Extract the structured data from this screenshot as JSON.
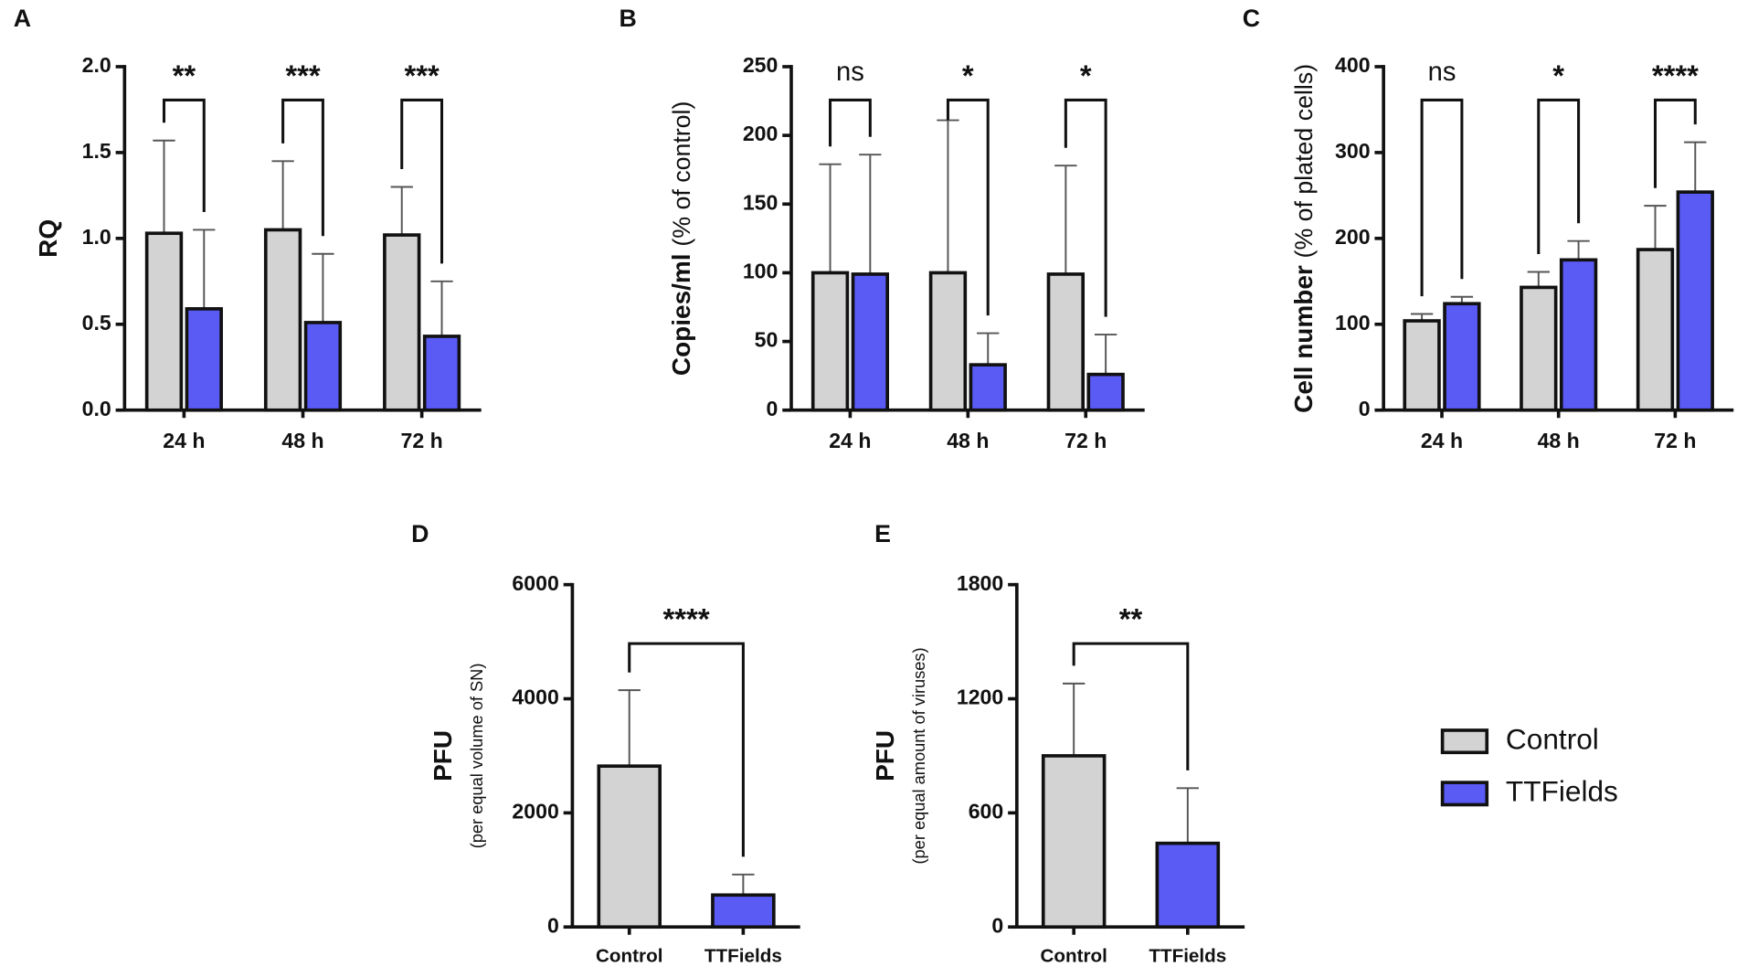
{
  "chart_data": [
    {
      "type": "grouped-bar",
      "panel": "A",
      "ylabel": "RQ",
      "categories": [
        "24 h",
        "48 h",
        "72 h"
      ],
      "series": [
        {
          "name": "Control",
          "color": "#d3d3d3",
          "values": [
            1.03,
            1.05,
            1.02
          ],
          "errors": [
            0.54,
            0.4,
            0.28
          ]
        },
        {
          "name": "TTFields",
          "color": "#5a5af5",
          "values": [
            0.59,
            0.51,
            0.43
          ],
          "errors": [
            0.46,
            0.4,
            0.32
          ]
        }
      ],
      "significance": [
        "**",
        "***",
        "***"
      ],
      "ylim": [
        0,
        2
      ],
      "yticks": [
        {
          "value": 0,
          "label": "0.0"
        },
        0.5,
        {
          "value": 1,
          "label": "1.0"
        },
        1.5,
        {
          "value": 2,
          "label": "2.0"
        }
      ]
    },
    {
      "type": "grouped-bar",
      "panel": "B",
      "ylabel": "Copies/ml",
      "ylabel_note": "(% of control)",
      "categories": [
        "24 h",
        "48 h",
        "72 h"
      ],
      "series": [
        {
          "name": "Control",
          "color": "#d3d3d3",
          "values": [
            100,
            100,
            99
          ],
          "errors": [
            79,
            111,
            79
          ]
        },
        {
          "name": "TTFields",
          "color": "#5a5af5",
          "values": [
            99,
            33,
            26
          ],
          "errors": [
            87,
            23,
            29
          ]
        }
      ],
      "significance": [
        "ns",
        "*",
        "*"
      ],
      "ylim": [
        0,
        250
      ],
      "yticks": [
        0,
        50,
        100,
        150,
        200,
        250
      ]
    },
    {
      "type": "grouped-bar",
      "panel": "C",
      "ylabel": "Cell number",
      "ylabel_note": "(% of plated cells)",
      "categories": [
        "24 h",
        "48 h",
        "72 h"
      ],
      "series": [
        {
          "name": "Control",
          "color": "#d3d3d3",
          "values": [
            104,
            143,
            187
          ],
          "errors": [
            8,
            18,
            51
          ]
        },
        {
          "name": "TTFields",
          "color": "#5a5af5",
          "values": [
            124,
            175,
            254
          ],
          "errors": [
            8,
            22,
            58
          ]
        }
      ],
      "significance": [
        "ns",
        "*",
        "****"
      ],
      "ylim": [
        0,
        400
      ],
      "yticks": [
        0,
        100,
        200,
        300,
        400
      ]
    },
    {
      "type": "bar",
      "panel": "D",
      "ylabel": "PFU",
      "ylabel_note": "(per equal volume of SN)",
      "categories": [
        "Control",
        "TTFields"
      ],
      "values": [
        2820,
        560
      ],
      "errors": [
        1330,
        360
      ],
      "colors": [
        "#d3d3d3",
        "#5a5af5"
      ],
      "significance": "****",
      "ylim": [
        0,
        6000
      ],
      "yticks": [
        0,
        2000,
        4000,
        6000
      ]
    },
    {
      "type": "bar",
      "panel": "E",
      "ylabel": "PFU",
      "ylabel_note": "(per equal amount of viruses)",
      "categories": [
        "Control",
        "TTFields"
      ],
      "values": [
        900,
        440
      ],
      "errors": [
        380,
        290
      ],
      "colors": [
        "#d3d3d3",
        "#5a5af5"
      ],
      "significance": "**",
      "ylim": [
        0,
        1800
      ],
      "yticks": [
        0,
        600,
        1200,
        1800
      ]
    }
  ]
}
